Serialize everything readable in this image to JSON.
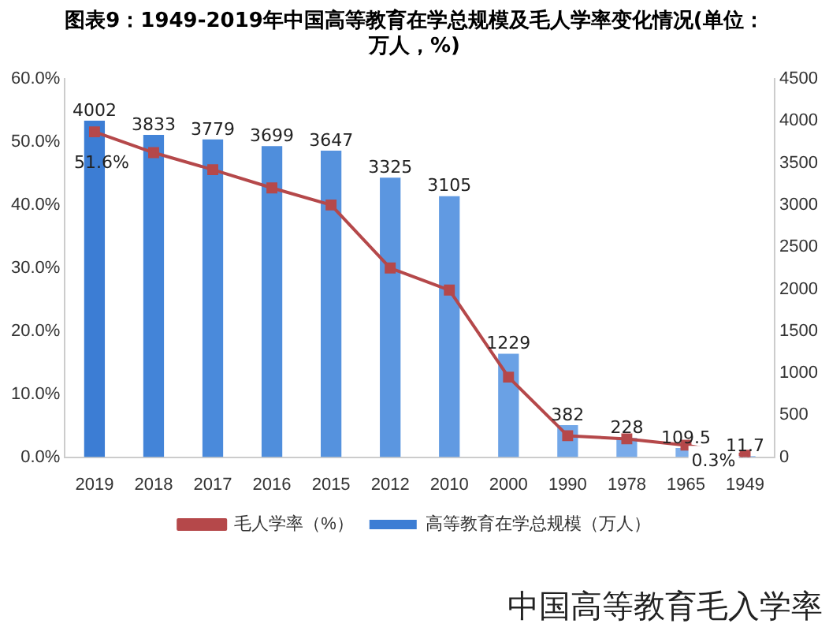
{
  "chart_data": {
    "type": "bar",
    "title": "图表9：1949-2019年中国高等教育在学总规模及毛人学率变化情况(单位：万人，%)",
    "categories": [
      "2019",
      "2018",
      "2017",
      "2016",
      "2015",
      "2012",
      "2010",
      "2000",
      "1990",
      "1978",
      "1965",
      "1949"
    ],
    "series": [
      {
        "type": "line",
        "name": "毛人学率（%）",
        "color": "#b5484a",
        "values": [
          51.6,
          48.3,
          45.6,
          42.7,
          40.0,
          30.0,
          26.5,
          12.7,
          3.4,
          2.9,
          1.9,
          0.3
        ],
        "value_labels": [
          "51.6%",
          null,
          null,
          null,
          null,
          null,
          null,
          null,
          null,
          null,
          null,
          "0.3%"
        ]
      },
      {
        "name": "高等教育在学总规模（万人）",
        "axis": "y2",
        "colors": [
          "#3c7dd4",
          "#4384d8",
          "#4a8adb",
          "#4f8edc",
          "#5592de",
          "#5b96e0",
          "#619ae2",
          "#6aa1e5",
          "#72a7e8",
          "#79abea",
          "#7fafeb",
          "#85b3ec"
        ],
        "values": [
          4002,
          3833,
          3779,
          3699,
          3647,
          3325,
          3105,
          1229,
          382,
          228,
          109.5,
          11.7
        ],
        "value_labels": [
          "4002",
          "3833",
          "3779",
          "3699",
          "3647",
          "3325",
          "3105",
          "1229",
          "382",
          "228",
          "109.5",
          "11.7"
        ]
      }
    ],
    "ylim": [
      0,
      60
    ],
    "yticks": [
      {
        "value": 0,
        "label": "0.0%"
      },
      {
        "value": 10,
        "label": "10.0%"
      },
      {
        "value": 20,
        "label": "20.0%"
      },
      {
        "value": 30,
        "label": "30.0%"
      },
      {
        "value": 40,
        "label": "40.0%"
      },
      {
        "value": 50,
        "label": "50.0%"
      },
      {
        "value": 60,
        "label": "60.0%"
      }
    ],
    "y2lim": [
      0,
      4500
    ],
    "y2ticks": [
      0,
      500,
      1000,
      1500,
      2000,
      2500,
      3000,
      3500,
      4000,
      4500
    ],
    "marker": "square",
    "grid": false,
    "legend": "bottom",
    "annotations": [
      "中国高等教育毛入学率"
    ]
  }
}
